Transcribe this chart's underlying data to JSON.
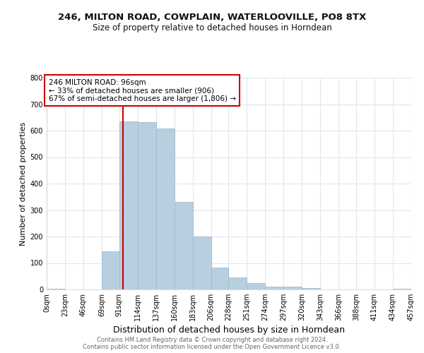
{
  "title": "246, MILTON ROAD, COWPLAIN, WATERLOOVILLE, PO8 8TX",
  "subtitle": "Size of property relative to detached houses in Horndean",
  "xlabel": "Distribution of detached houses by size in Horndean",
  "ylabel": "Number of detached properties",
  "bar_color": "#b8cfe0",
  "bar_edgecolor": "#a0bcd0",
  "plot_background_color": "#ffffff",
  "fig_background_color": "#ffffff",
  "grid_color": "#dde8f0",
  "annotation_line_color": "#cc0000",
  "annotation_box_edgecolor": "#cc0000",
  "annotation_text_line1": "246 MILTON ROAD: 96sqm",
  "annotation_text_line2": "← 33% of detached houses are smaller (906)",
  "annotation_text_line3": "67% of semi-detached houses are larger (1,806) →",
  "property_size": 96,
  "bin_edges": [
    0,
    23,
    46,
    69,
    91,
    114,
    137,
    160,
    183,
    206,
    228,
    251,
    274,
    297,
    320,
    343,
    366,
    388,
    411,
    434,
    457
  ],
  "bin_labels": [
    "0sqm",
    "23sqm",
    "46sqm",
    "69sqm",
    "91sqm",
    "114sqm",
    "137sqm",
    "160sqm",
    "183sqm",
    "206sqm",
    "228sqm",
    "251sqm",
    "274sqm",
    "297sqm",
    "320sqm",
    "343sqm",
    "366sqm",
    "388sqm",
    "411sqm",
    "434sqm",
    "457sqm"
  ],
  "bar_heights": [
    3,
    0,
    0,
    143,
    634,
    633,
    609,
    332,
    200,
    84,
    46,
    25,
    12,
    10,
    5,
    1,
    0,
    0,
    0,
    3
  ],
  "ylim": [
    0,
    800
  ],
  "yticks": [
    0,
    100,
    200,
    300,
    400,
    500,
    600,
    700,
    800
  ],
  "footer_line1": "Contains HM Land Registry data © Crown copyright and database right 2024.",
  "footer_line2": "Contains public sector information licensed under the Open Government Licence v3.0.",
  "title_fontsize": 9.5,
  "subtitle_fontsize": 8.5,
  "ylabel_fontsize": 8,
  "xlabel_fontsize": 9,
  "footer_fontsize": 6,
  "tick_fontsize": 7,
  "annot_fontsize": 7.5
}
